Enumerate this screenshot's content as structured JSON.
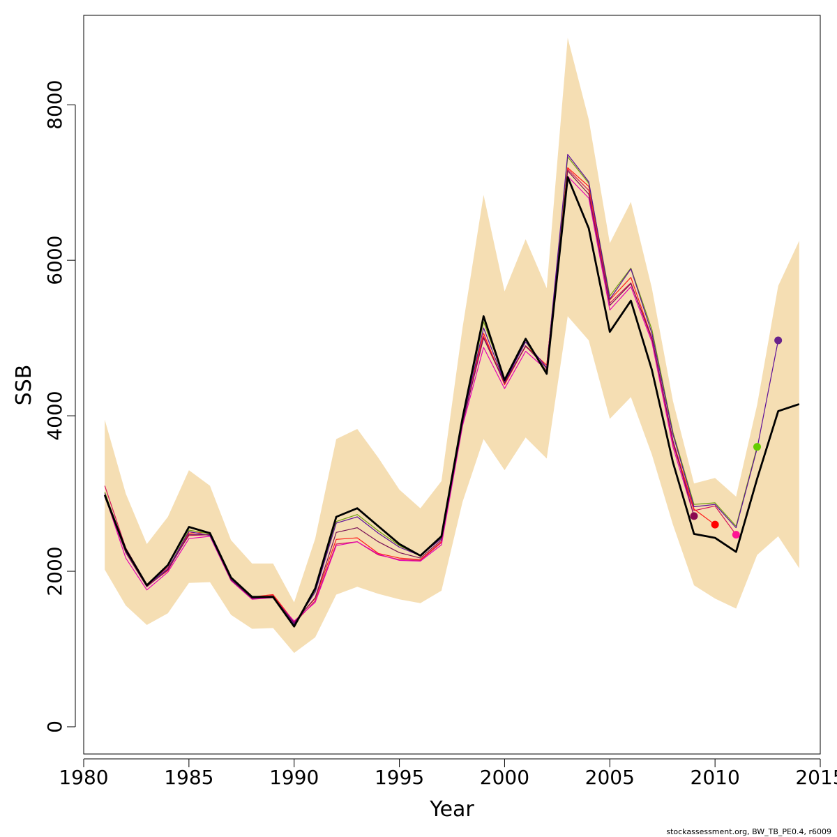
{
  "chart_data": {
    "type": "line",
    "xlabel": "Year",
    "ylabel": "SSB",
    "xlim": [
      1980,
      2015
    ],
    "ylim": [
      -350,
      9150
    ],
    "x_ticks": [
      1980,
      1985,
      1990,
      1995,
      2000,
      2005,
      2010,
      2015
    ],
    "y_ticks": [
      0,
      2000,
      4000,
      6000,
      8000
    ],
    "grid": false,
    "legend": "none",
    "credit": "stockassessment.org, BW_TB_PE0.4, r6009",
    "band": {
      "color": "#f5deb3",
      "x": [
        1981,
        1982,
        1983,
        1984,
        1985,
        1986,
        1987,
        1988,
        1989,
        1990,
        1991,
        1992,
        1993,
        1994,
        1995,
        1996,
        1997,
        1998,
        1999,
        2000,
        2001,
        2002,
        2003,
        2004,
        2005,
        2006,
        2007,
        2008,
        2009,
        2010,
        2011,
        2012,
        2013,
        2014
      ],
      "upper": [
        3950,
        3000,
        2350,
        2700,
        3300,
        3100,
        2400,
        2100,
        2100,
        1600,
        2420,
        3700,
        3830,
        3460,
        3050,
        2810,
        3160,
        5130,
        6840,
        5600,
        6270,
        5640,
        8860,
        7810,
        6220,
        6750,
        5640,
        4190,
        3130,
        3200,
        2960,
        4140,
        5670,
        6250
      ],
      "lower": [
        2020,
        1560,
        1310,
        1460,
        1850,
        1860,
        1440,
        1260,
        1270,
        950,
        1150,
        1700,
        1800,
        1710,
        1640,
        1590,
        1750,
        2890,
        3700,
        3300,
        3720,
        3450,
        5280,
        4970,
        3960,
        4240,
        3500,
        2600,
        1820,
        1650,
        1520,
        2210,
        2450,
        2040
      ]
    },
    "series": [
      {
        "color": "#000000",
        "width": 2.8,
        "x": [
          1981,
          1982,
          1983,
          1984,
          1985,
          1986,
          1987,
          1988,
          1989,
          1990,
          1991,
          1992,
          1993,
          1994,
          1995,
          1996,
          1997,
          1998,
          1999,
          2000,
          2001,
          2002,
          2003,
          2004,
          2005,
          2006,
          2007,
          2008,
          2009,
          2010,
          2011,
          2012,
          2013,
          2014
        ],
        "values": [
          2980,
          2280,
          1820,
          2080,
          2570,
          2490,
          1920,
          1670,
          1670,
          1290,
          1780,
          2700,
          2810,
          2580,
          2350,
          2200,
          2450,
          3970,
          5280,
          4460,
          4990,
          4540,
          7070,
          6410,
          5080,
          5480,
          4590,
          3400,
          2480,
          2430,
          2250,
          3190,
          4060,
          4150
        ]
      },
      {
        "color": "#d4145a",
        "width": 1.2,
        "x": [
          1981,
          1982,
          1983,
          1984,
          1985,
          1986,
          1987,
          1988,
          1989,
          1990,
          1991,
          1992,
          1993,
          1994,
          1995,
          1996,
          1997,
          1998,
          1999,
          2000,
          2001,
          2002,
          2003,
          2004,
          2005,
          2006,
          2007,
          2008,
          2009,
          2010,
          2011
        ],
        "values": [
          3100,
          2300,
          1830,
          2050,
          2460,
          2470,
          1900,
          1650,
          1690,
          1330,
          1620,
          2350,
          2380,
          2210,
          2150,
          2140,
          2370,
          3910,
          5020,
          4430,
          4890,
          4650,
          7170,
          6900,
          5450,
          5710,
          4980,
          3640,
          2780,
          2840,
          2470
        ]
      },
      {
        "color": "#ff1a1a",
        "width": 1.2,
        "x": [
          1981,
          1982,
          1983,
          1984,
          1985,
          1986,
          1987,
          1988,
          1989,
          1990,
          1991,
          1992,
          1993,
          1994,
          1995,
          1996,
          1997,
          1998,
          1999,
          2000,
          2001,
          2002,
          2003,
          2004,
          2005,
          2006,
          2007,
          2008,
          2009,
          2010
        ],
        "values": [
          3000,
          2250,
          1810,
          2010,
          2490,
          2500,
          1920,
          1670,
          1700,
          1350,
          1650,
          2410,
          2430,
          2230,
          2170,
          2150,
          2380,
          3960,
          5060,
          4400,
          4900,
          4650,
          7190,
          6950,
          5490,
          5780,
          5000,
          3680,
          2800,
          2600
        ]
      },
      {
        "color": "#e600b4",
        "width": 1.2,
        "x": [
          1981,
          1982,
          1983,
          1984,
          1985,
          1986,
          1987,
          1988,
          1989,
          1990,
          1991,
          1992,
          1993,
          1994,
          1995,
          1996,
          1997,
          1998,
          1999,
          2000,
          2001,
          2002,
          2003,
          2004,
          2005,
          2006,
          2007,
          2008,
          2009
        ],
        "values": [
          2980,
          2170,
          1760,
          1990,
          2420,
          2450,
          1880,
          1640,
          1660,
          1360,
          1600,
          2330,
          2380,
          2220,
          2140,
          2130,
          2340,
          3870,
          4880,
          4350,
          4830,
          4590,
          7080,
          6800,
          5360,
          5660,
          4950,
          3600,
          2710
        ]
      },
      {
        "color": "#6f9e10",
        "width": 1.2,
        "x": [
          1981,
          1982,
          1983,
          1984,
          1985,
          1986,
          1987,
          1988,
          1989,
          1990,
          1991,
          1992,
          1993,
          1994,
          1995,
          1996,
          1997,
          1998,
          1999,
          2000,
          2001,
          2002,
          2003,
          2004,
          2005,
          2006,
          2007,
          2008,
          2009,
          2010,
          2011,
          2012
        ],
        "values": [
          3020,
          2260,
          1830,
          2030,
          2530,
          2480,
          1910,
          1670,
          1680,
          1310,
          1740,
          2640,
          2730,
          2520,
          2330,
          2200,
          2430,
          3960,
          5210,
          4470,
          4950,
          4570,
          7330,
          6990,
          5540,
          5900,
          5110,
          3790,
          2860,
          2880,
          2580,
          3600
        ]
      },
      {
        "color": "#5c0d99",
        "width": 1.2,
        "x": [
          1981,
          1982,
          1983,
          1984,
          1985,
          1986,
          1987,
          1988,
          1989,
          1990,
          1991,
          1992,
          1993,
          1994,
          1995,
          1996,
          1997,
          1998,
          1999,
          2000,
          2001,
          2002,
          2003,
          2004,
          2005,
          2006,
          2007,
          2008,
          2009,
          2010,
          2011,
          2012,
          2013
        ],
        "values": [
          3000,
          2250,
          1820,
          2030,
          2510,
          2460,
          1900,
          1660,
          1660,
          1320,
          1730,
          2620,
          2700,
          2490,
          2310,
          2200,
          2420,
          3930,
          5130,
          4430,
          4950,
          4620,
          7360,
          7010,
          5500,
          5890,
          5060,
          3760,
          2830,
          2860,
          2560,
          3580,
          4970
        ]
      },
      {
        "color": "#7a0f55",
        "width": 1.2,
        "x": [
          1981,
          1982,
          1983,
          1984,
          1985,
          1986,
          1987,
          1988,
          1989,
          1990,
          1991,
          1992,
          1993,
          1994,
          1995,
          1996,
          1997,
          1998,
          1999,
          2000,
          2001,
          2002,
          2003,
          2004,
          2005,
          2006,
          2007,
          2008,
          2009
        ],
        "values": [
          2960,
          2240,
          1800,
          2020,
          2470,
          2470,
          1890,
          1650,
          1670,
          1340,
          1660,
          2500,
          2560,
          2380,
          2240,
          2170,
          2400,
          3900,
          5000,
          4420,
          4900,
          4610,
          7150,
          6850,
          5420,
          5700,
          5000,
          3680,
          2710
        ]
      }
    ],
    "points": [
      {
        "x": 2009,
        "y": 2710,
        "color": "#8b0a50"
      },
      {
        "x": 2010,
        "y": 2600,
        "color": "#ff0000"
      },
      {
        "x": 2011,
        "y": 2470,
        "color": "#ff1493"
      },
      {
        "x": 2012,
        "y": 3600,
        "color": "#66cd00"
      },
      {
        "x": 2013,
        "y": 4970,
        "color": "#68228b"
      }
    ]
  }
}
